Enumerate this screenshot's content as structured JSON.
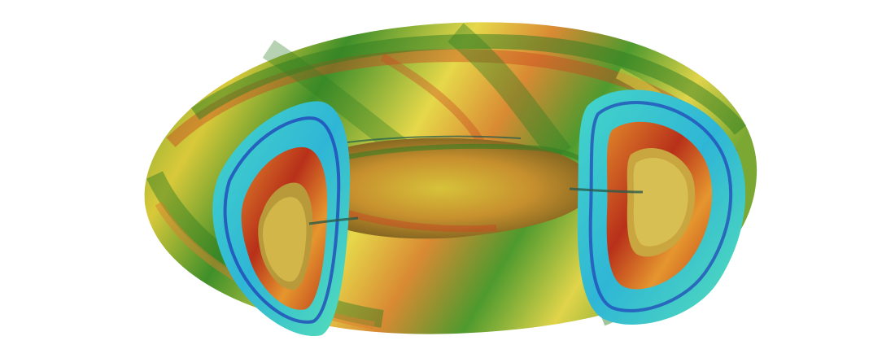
{
  "image": {
    "subject": "torus-simulation-visualization",
    "colors": {
      "background": "#ffffff",
      "surface_yellow": "#e8d83a",
      "surface_green": "#3f8f2a",
      "surface_orange": "#d7802e",
      "surface_red": "#b8401e",
      "section_cyan": "#3fd2d0",
      "section_blue": "#1f3fb8",
      "section_red": "#c0301a",
      "section_orange": "#e58a2a"
    }
  }
}
